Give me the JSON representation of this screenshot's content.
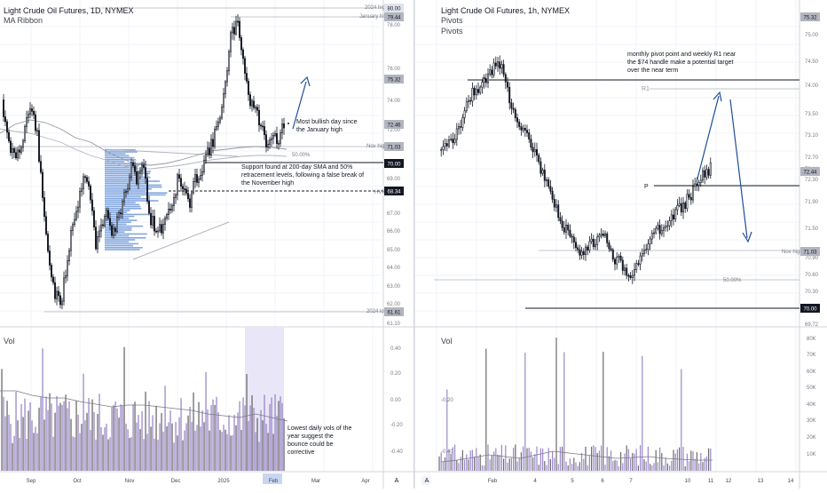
{
  "left": {
    "title": "Light Crude Oil Futures, 1D, NYMEX",
    "indicator": "MA Ribbon",
    "vol_label": "Vol",
    "price_ticks": [
      "80.00",
      "78.00",
      "76.00",
      "74.00",
      "72.00",
      "70.00",
      "69.00",
      "67.00",
      "66.00",
      "65.00",
      "64.00",
      "63.00",
      "62.00",
      "61.10"
    ],
    "price_tags": [
      {
        "text": "80.00",
        "kind": "light"
      },
      {
        "text": "79.44",
        "kind": "gray"
      },
      {
        "text": "75.32",
        "kind": "gray"
      },
      {
        "text": "72.46",
        "kind": "gray"
      },
      {
        "text": "71.03",
        "kind": "gray"
      },
      {
        "text": "70.00",
        "kind": "dark"
      },
      {
        "text": "68.34",
        "kind": "dark"
      },
      {
        "text": "61.61",
        "kind": "gray"
      }
    ],
    "level_labels": {
      "high_2024": "2024 high",
      "january_high": "January high",
      "nov_high": "Nov high",
      "fib_50": "50.00%",
      "hvn": "HVN",
      "low_2024": "2024 low"
    },
    "vol_ticks": [
      "0.40",
      "0.20",
      "0.00",
      "-0.20",
      "-0.40"
    ],
    "x_labels": [
      "Sep",
      "Oct",
      "Nov",
      "Dec",
      "2025",
      "Feb",
      "Mar",
      "Apr"
    ],
    "x_highlight": "Feb",
    "annotations": {
      "bullish": "Most bullish day since\nthe January high",
      "support": "Support found at 200-day SMA and 50%\nretracement levels, following a false break of\nthe November high",
      "volume": "Lowest daily vols of the\nyear suggest the\nbounce could be\ncorrective"
    },
    "axis_btn": "A"
  },
  "right": {
    "title": "Light Crude Oil Futures, 1h, NYMEX",
    "indicator1": "Pivots",
    "indicator2": "Pivots",
    "vol_label": "Vol",
    "price_ticks": [
      "75.32",
      "75.00",
      "74.50",
      "74.00",
      "73.50",
      "73.10",
      "72.70",
      "72.44",
      "72.30",
      "71.90",
      "71.50",
      "71.03",
      "70.90",
      "70.60",
      "70.30",
      "70.00",
      "69.72"
    ],
    "price_tags": [
      {
        "text": "75.32",
        "kind": "gray"
      },
      {
        "text": "72.44",
        "kind": "gray"
      },
      {
        "text": "71.03",
        "kind": "gray"
      },
      {
        "text": "70.00",
        "kind": "dark"
      }
    ],
    "level_labels": {
      "pivot_p1": "P",
      "pivot_p2": "P",
      "r1": "R1",
      "nov_high": "Nov high",
      "fib_50": "50.00%"
    },
    "vol_ticks": [
      "80K",
      "70K",
      "60K",
      "50K",
      "40K",
      "30K",
      "20K",
      "10K"
    ],
    "x_labels": [
      "Feb",
      "4",
      "5",
      "6",
      "7",
      "10",
      "11",
      "12",
      "13",
      "14"
    ],
    "annotations": {
      "pivot": "monthly pivot point and weekly R1 near\nthe $74 handle make a potential target\nover the near term"
    },
    "axis_btn": "A"
  },
  "colors": {
    "candle": "#131722",
    "blue_arrow": "#1f4e96",
    "vp_blue": "#5b8bd6",
    "vol_bar": "#9b88c9",
    "vol_bar_dark": "#6b6b6b",
    "grid": "#f0f3fa",
    "axis_text": "#787b86"
  }
}
